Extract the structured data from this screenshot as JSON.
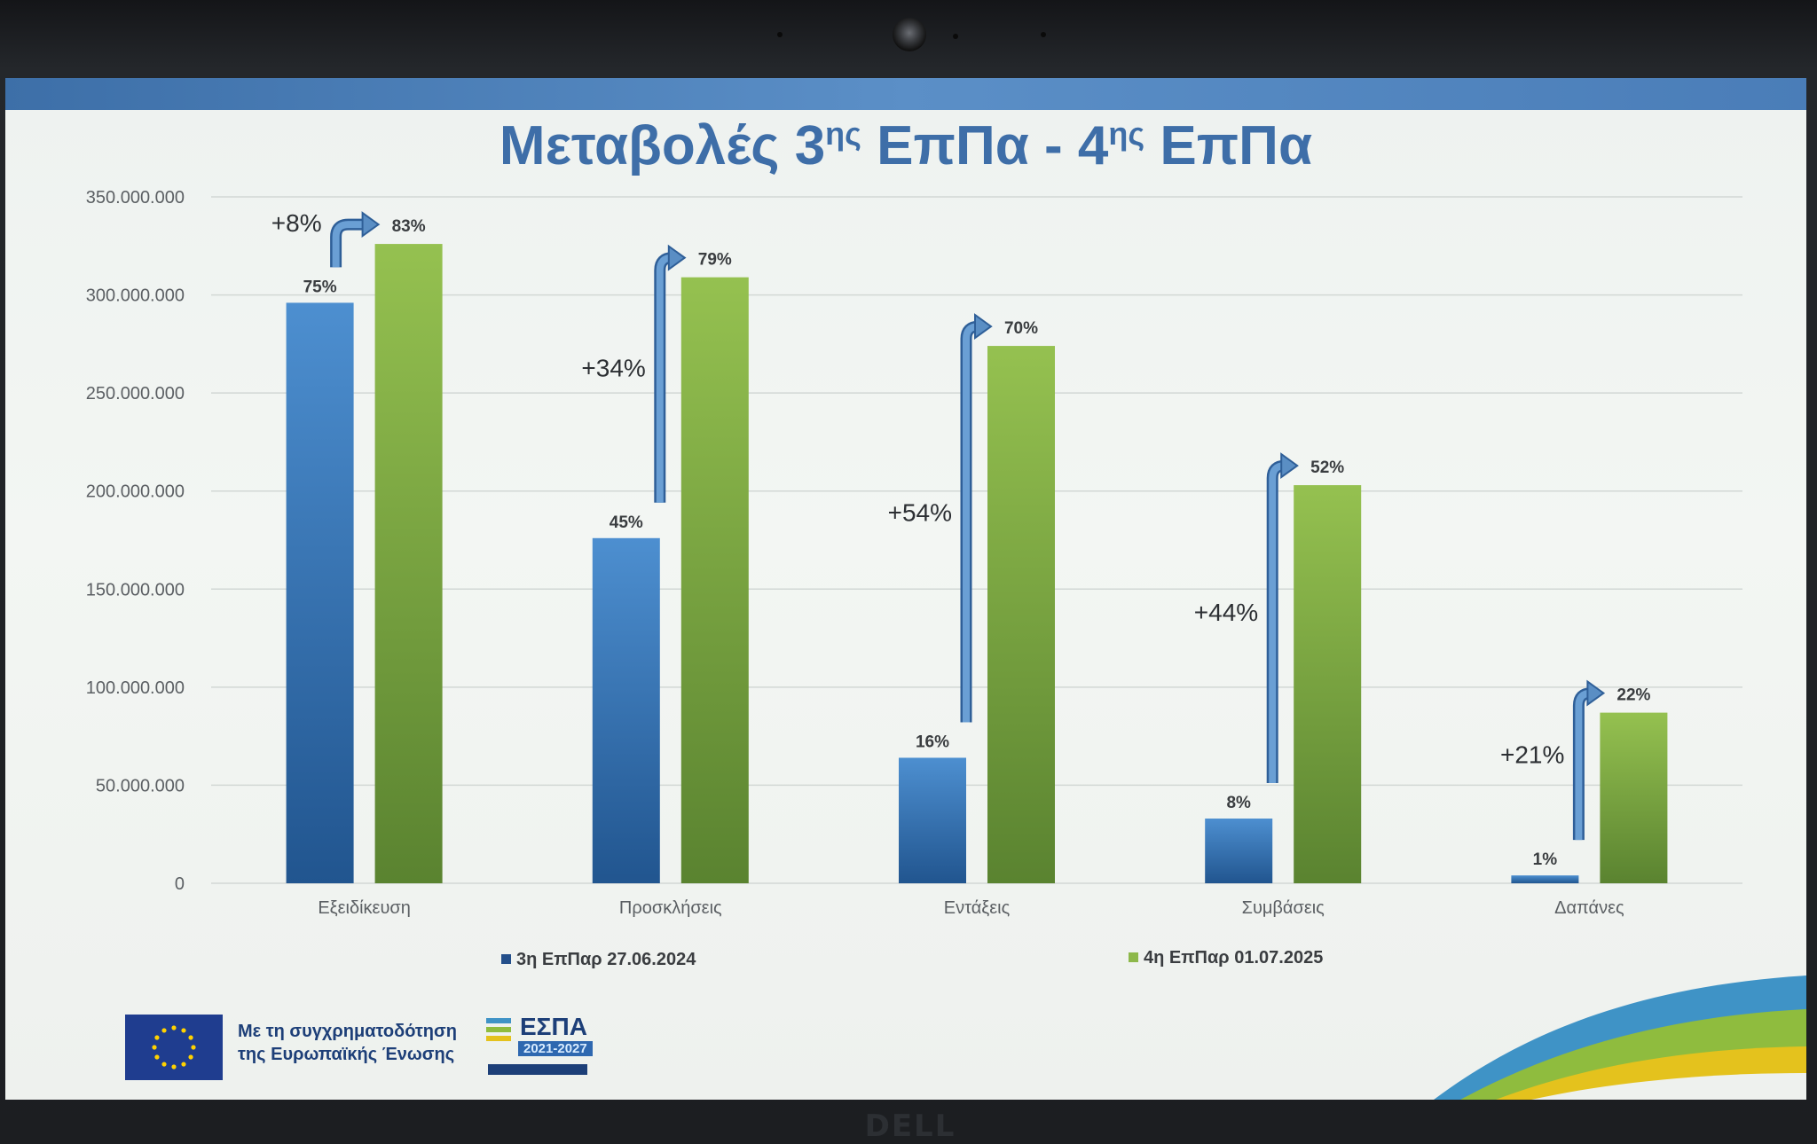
{
  "colors": {
    "series1": "#3f84c6",
    "series1_dark": "#234f8a",
    "series2": "#8db84a",
    "series2_dark": "#557e2c",
    "title": "#3e6ea8",
    "arrow": "#5a8ec4",
    "grid": "#d2d8d5",
    "axis_text": "#5b5f63"
  },
  "chart_data": {
    "type": "bar",
    "title": "Μεταβολές 3ης ΕπΠα - 4ης ΕπΠα",
    "title_parts": {
      "a": "Μεταβολές 3",
      "sup1": "ης",
      "b": " ΕπΠα - 4",
      "sup2": "ης",
      "c": " ΕπΠα"
    },
    "categories": [
      "Εξειδίκευση",
      "Προσκλήσεις",
      "Εντάξεις",
      "Συμβάσεις",
      "Δαπάνες"
    ],
    "series": [
      {
        "name": "3η ΕπΠαρ 27.06.2024",
        "values": [
          296000000,
          176000000,
          64000000,
          33000000,
          4000000
        ],
        "labels": [
          "75%",
          "45%",
          "16%",
          "8%",
          "1%"
        ]
      },
      {
        "name": "4η ΕπΠαρ 01.07.2025",
        "values": [
          326000000,
          309000000,
          274000000,
          203000000,
          87000000
        ],
        "labels": [
          "83%",
          "79%",
          "70%",
          "52%",
          "22%"
        ]
      }
    ],
    "changes": [
      "+8%",
      "+34%",
      "+54%",
      "+44%",
      "+21%"
    ],
    "ylim": [
      0,
      350000000
    ],
    "yticks": [
      "0",
      "50.000.000",
      "100.000.000",
      "150.000.000",
      "200.000.000",
      "250.000.000",
      "300.000.000",
      "350.000.000"
    ],
    "ytick_values": [
      0,
      50000000,
      100000000,
      150000000,
      200000000,
      250000000,
      300000000,
      350000000
    ],
    "grid": true,
    "legend": "bottom"
  },
  "footer": {
    "cofunding": "Με τη συγχρηματοδότηση της Ευρωπαϊκής Ένωσης",
    "cofunding_line1": "Με τη συγχρηματοδότηση",
    "cofunding_line2": "της Ευρωπαϊκής Ένωσης",
    "espa_name": "ΕΣΠΑ",
    "espa_years": "2021-2027"
  },
  "device": {
    "brand": "DELL"
  }
}
